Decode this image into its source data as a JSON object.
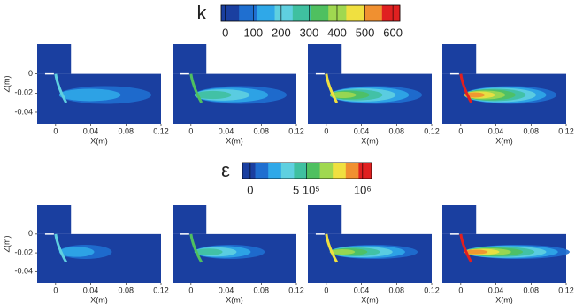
{
  "colorbars": [
    {
      "symbol": "k",
      "lim": [
        -15,
        625
      ],
      "ticks": [
        0,
        100,
        200,
        300,
        400,
        500,
        600
      ],
      "colors": [
        "#1a3fa0",
        "#1f6fd0",
        "#2fa8e8",
        "#5fd0e0",
        "#3fc0a0",
        "#4fc060",
        "#a0d850",
        "#f0e040",
        "#f09030",
        "#e02020"
      ]
    },
    {
      "symbol": "ε",
      "lim": [
        -70000,
        1080000
      ],
      "ticks": [
        {
          "value": 0,
          "label": "0"
        },
        {
          "value": 500000,
          "label": "5 10⁵"
        },
        {
          "value": 1000000,
          "label": "10⁶"
        }
      ],
      "colors": [
        "#1a3fa0",
        "#1f6fd0",
        "#2fa8e8",
        "#5fd0e0",
        "#3fc0a0",
        "#4fc060",
        "#a0d850",
        "#f0e040",
        "#f09030",
        "#e02020"
      ]
    }
  ],
  "axes": {
    "xlabel": "X(m)",
    "ylabel": "Z(m)",
    "xlim": [
      -0.021,
      0.12
    ],
    "xticks": [
      0,
      0.04,
      0.08,
      0.12
    ],
    "ylim": [
      -0.052,
      0.031
    ],
    "yticks": [
      0,
      -0.02,
      -0.04
    ]
  }
}
